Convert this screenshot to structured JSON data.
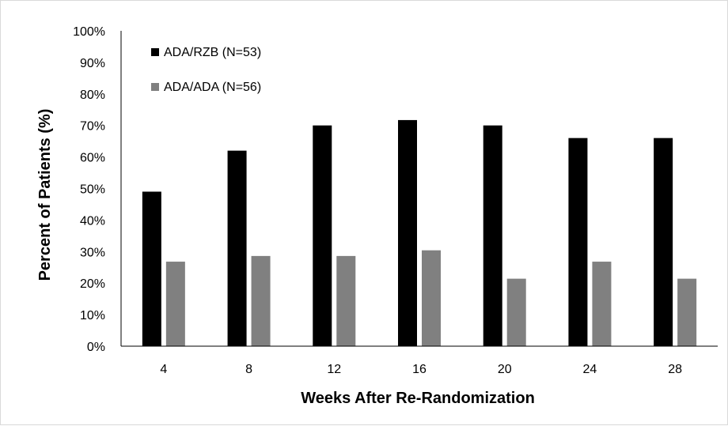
{
  "chart_data": {
    "type": "bar",
    "categories": [
      "4",
      "8",
      "12",
      "16",
      "20",
      "24",
      "28"
    ],
    "series": [
      {
        "name": "ADA/RZB (N=53)",
        "color": "#000000",
        "values": [
          49,
          62,
          70,
          71.7,
          70,
          66,
          66
        ]
      },
      {
        "name": "ADA/ADA (N=56)",
        "color": "#808080",
        "values": [
          26.8,
          28.6,
          28.6,
          30.4,
          21.4,
          26.8,
          21.4
        ]
      }
    ],
    "xlabel": "Weeks After Re-Randomization",
    "ylabel": "Percent of Patients (%)",
    "ylim": [
      0,
      100
    ],
    "ytick_step": 10,
    "ytick_suffix": "%",
    "grid": false,
    "legend_position": "top-left"
  }
}
